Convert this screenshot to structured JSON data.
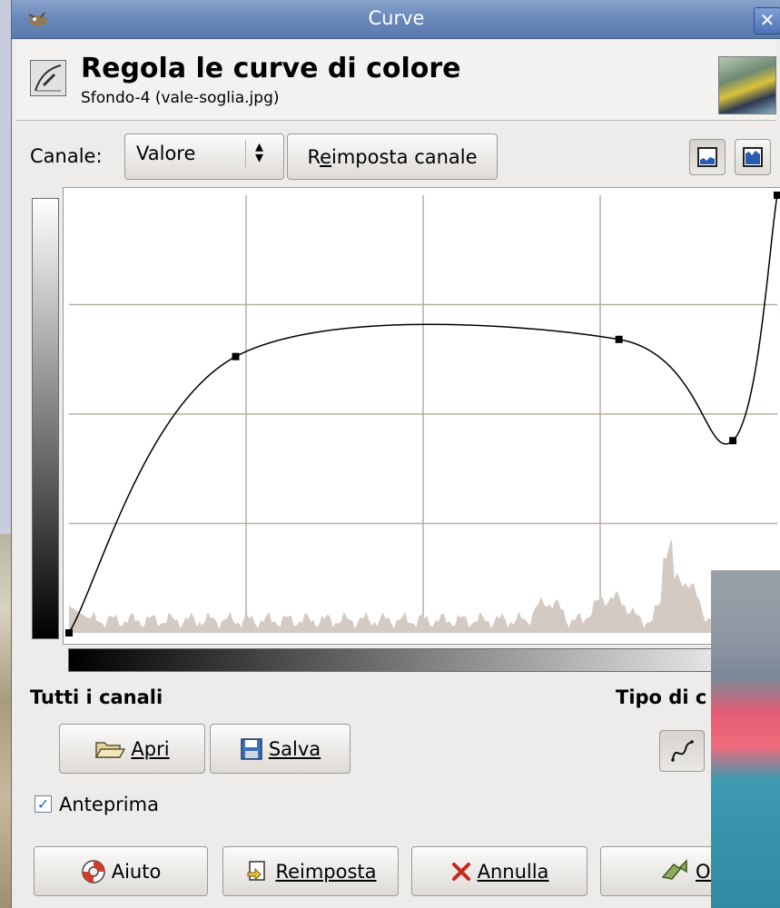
{
  "window": {
    "title": "Curve",
    "close_symbol": "✕"
  },
  "header": {
    "title": "Regola le curve di colore",
    "subtitle": "Sfondo-4 (vale-soglia.jpg)"
  },
  "channel": {
    "label": "Canale:",
    "selected": "Valore",
    "reset_button": "Reimposta canale",
    "reset_mnemonic": "e"
  },
  "histogram_modes": [
    "linear-histogram-icon",
    "logarithmic-histogram-icon"
  ],
  "curve": {
    "control_points": [
      {
        "x": 0,
        "y": 0
      },
      {
        "x": 60,
        "y": 161
      },
      {
        "x": 198,
        "y": 171
      },
      {
        "x": 239,
        "y": 112
      },
      {
        "x": 255,
        "y": 255
      }
    ],
    "grid_divisions": 4
  },
  "all_channels": {
    "label": "Tutti i canali",
    "open_button": "Apri",
    "save_button": "Salva"
  },
  "curve_type": {
    "label_partial": "Tipo di c"
  },
  "preview": {
    "label": "Anteprima",
    "checked": true
  },
  "actions": {
    "help": "Aiuto",
    "reset": "Reimposta",
    "cancel": "Annulla",
    "ok": "OK"
  },
  "colors": {
    "titlebar": "#6b8abb",
    "histogram": "#d3cbc3",
    "grid": "#b8ada2"
  }
}
